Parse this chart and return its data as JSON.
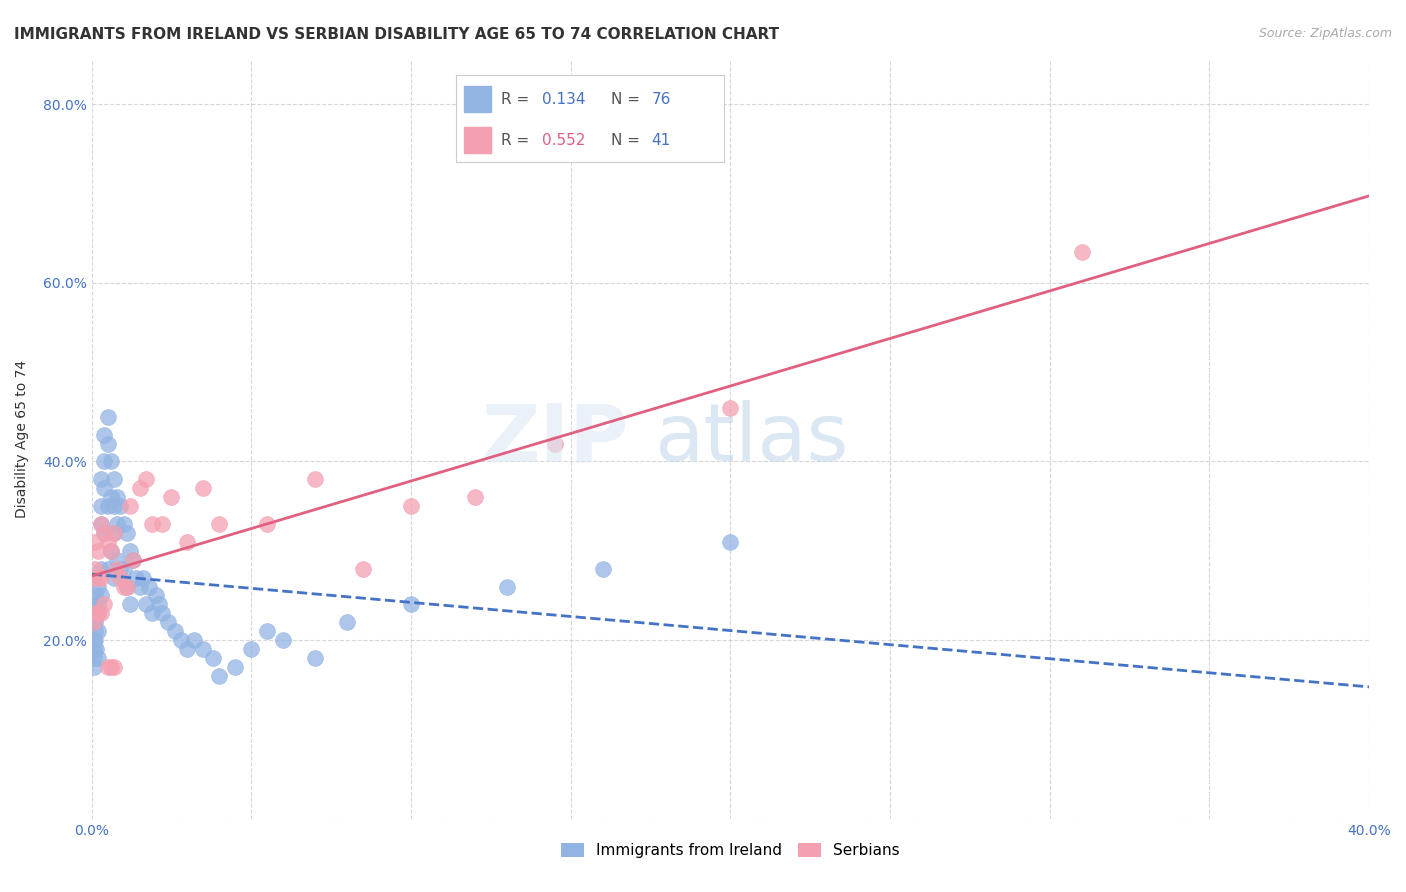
{
  "title": "IMMIGRANTS FROM IRELAND VS SERBIAN DISABILITY AGE 65 TO 74 CORRELATION CHART",
  "source": "Source: ZipAtlas.com",
  "ylabel": "Disability Age 65 to 74",
  "xlim": [
    0.0,
    0.4
  ],
  "ylim": [
    0.0,
    0.85
  ],
  "ireland_color": "#92b4e3",
  "serbian_color": "#f4a0b0",
  "ireland_line_color": "#4472c4",
  "serbian_line_color": "#e06080",
  "grid_color": "#cccccc",
  "background_color": "#ffffff",
  "title_fontsize": 11,
  "axis_label_fontsize": 10,
  "tick_fontsize": 10,
  "legend_fontsize": 11,
  "ireland_x": [
    0.0005,
    0.0006,
    0.0007,
    0.0008,
    0.0009,
    0.001,
    0.001,
    0.001,
    0.001,
    0.001,
    0.0015,
    0.0015,
    0.002,
    0.002,
    0.002,
    0.002,
    0.002,
    0.003,
    0.003,
    0.003,
    0.003,
    0.003,
    0.004,
    0.004,
    0.004,
    0.004,
    0.005,
    0.005,
    0.005,
    0.005,
    0.006,
    0.006,
    0.006,
    0.007,
    0.007,
    0.007,
    0.007,
    0.008,
    0.008,
    0.008,
    0.009,
    0.009,
    0.01,
    0.01,
    0.011,
    0.011,
    0.012,
    0.012,
    0.013,
    0.014,
    0.015,
    0.016,
    0.017,
    0.018,
    0.019,
    0.02,
    0.021,
    0.022,
    0.024,
    0.026,
    0.028,
    0.03,
    0.032,
    0.035,
    0.038,
    0.04,
    0.045,
    0.05,
    0.055,
    0.06,
    0.07,
    0.08,
    0.1,
    0.13,
    0.16,
    0.2
  ],
  "ireland_y": [
    0.22,
    0.2,
    0.19,
    0.18,
    0.17,
    0.25,
    0.24,
    0.22,
    0.21,
    0.2,
    0.23,
    0.19,
    0.26,
    0.24,
    0.23,
    0.21,
    0.18,
    0.38,
    0.35,
    0.33,
    0.28,
    0.25,
    0.43,
    0.4,
    0.37,
    0.32,
    0.45,
    0.42,
    0.35,
    0.28,
    0.4,
    0.36,
    0.3,
    0.38,
    0.35,
    0.32,
    0.27,
    0.36,
    0.33,
    0.29,
    0.35,
    0.28,
    0.33,
    0.28,
    0.32,
    0.26,
    0.3,
    0.24,
    0.29,
    0.27,
    0.26,
    0.27,
    0.24,
    0.26,
    0.23,
    0.25,
    0.24,
    0.23,
    0.22,
    0.21,
    0.2,
    0.19,
    0.2,
    0.19,
    0.18,
    0.16,
    0.17,
    0.19,
    0.21,
    0.2,
    0.18,
    0.22,
    0.24,
    0.26,
    0.28,
    0.31
  ],
  "serbian_x": [
    0.0005,
    0.0008,
    0.001,
    0.001,
    0.001,
    0.002,
    0.002,
    0.002,
    0.003,
    0.003,
    0.003,
    0.004,
    0.004,
    0.005,
    0.005,
    0.006,
    0.006,
    0.007,
    0.007,
    0.008,
    0.009,
    0.01,
    0.011,
    0.012,
    0.013,
    0.015,
    0.017,
    0.019,
    0.022,
    0.025,
    0.03,
    0.035,
    0.04,
    0.055,
    0.07,
    0.085,
    0.1,
    0.12,
    0.145,
    0.2,
    0.31
  ],
  "serbian_y": [
    0.27,
    0.22,
    0.31,
    0.28,
    0.23,
    0.3,
    0.27,
    0.23,
    0.33,
    0.27,
    0.23,
    0.32,
    0.24,
    0.31,
    0.17,
    0.3,
    0.17,
    0.32,
    0.17,
    0.28,
    0.27,
    0.26,
    0.26,
    0.35,
    0.29,
    0.37,
    0.38,
    0.33,
    0.33,
    0.36,
    0.31,
    0.37,
    0.33,
    0.33,
    0.38,
    0.28,
    0.35,
    0.36,
    0.42,
    0.46,
    0.635
  ]
}
